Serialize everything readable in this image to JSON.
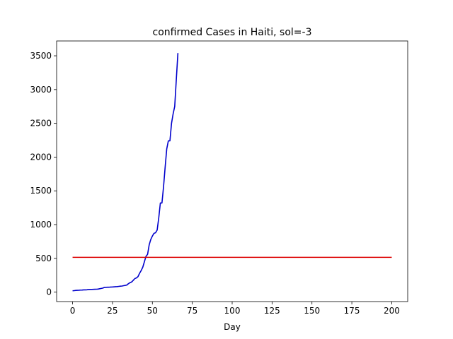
{
  "chart_data": {
    "type": "line",
    "title": "confirmed Cases in Haiti, sol=-3",
    "xlabel": "Day",
    "ylabel": "",
    "xlim": [
      -10,
      210
    ],
    "ylim": [
      -140,
      3720
    ],
    "xticks": [
      0,
      25,
      50,
      75,
      100,
      125,
      150,
      175,
      200
    ],
    "yticks": [
      0,
      500,
      1000,
      1500,
      2000,
      2500,
      3000,
      3500
    ],
    "grid": false,
    "series": [
      {
        "color": "#0000cc",
        "x": [
          0,
          1,
          2,
          3,
          4,
          5,
          6,
          7,
          8,
          9,
          10,
          11,
          12,
          13,
          14,
          15,
          16,
          17,
          18,
          19,
          20,
          21,
          22,
          23,
          24,
          25,
          26,
          27,
          28,
          29,
          30,
          31,
          32,
          33,
          34,
          35,
          36,
          37,
          38,
          39,
          40,
          41,
          42,
          43,
          44,
          45,
          46,
          47,
          48,
          49,
          50,
          51,
          52,
          53,
          54,
          55,
          56,
          57,
          58,
          59,
          60,
          61,
          62,
          63,
          64,
          65,
          66
        ],
        "y": [
          20,
          22,
          25,
          27,
          28,
          30,
          31,
          33,
          33,
          35,
          38,
          40,
          40,
          41,
          42,
          43,
          45,
          50,
          55,
          60,
          70,
          71,
          72,
          73,
          75,
          76,
          78,
          80,
          82,
          85,
          88,
          90,
          95,
          100,
          105,
          125,
          140,
          150,
          175,
          200,
          210,
          230,
          280,
          320,
          370,
          450,
          530,
          560,
          700,
          780,
          830,
          870,
          880,
          920,
          1100,
          1320,
          1320,
          1560,
          1850,
          2120,
          2240,
          2240,
          2500,
          2640,
          2750,
          3150,
          3540
        ]
      },
      {
        "color": "#dd0000",
        "x": [
          0,
          200
        ],
        "y": [
          515,
          515
        ]
      }
    ]
  }
}
